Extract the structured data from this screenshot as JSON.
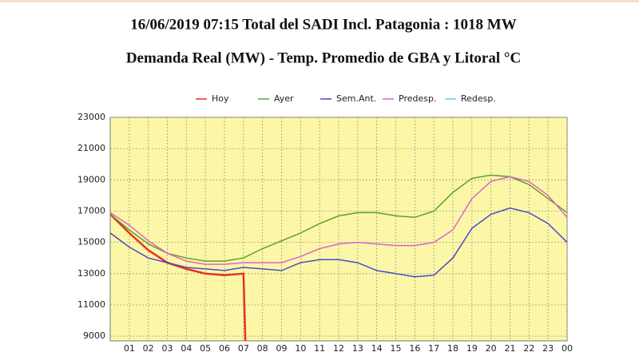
{
  "chart_data": {
    "type": "line",
    "title": "16/06/2019 07:15 Total del SADI Incl. Patagonia : 1018 MW",
    "subtitle": "Demanda Real (MW) - Temp. Promedio de GBA y Litoral °C",
    "x": [
      0,
      1,
      2,
      3,
      4,
      5,
      6,
      7,
      8,
      9,
      10,
      11,
      12,
      13,
      14,
      15,
      16,
      17,
      18,
      19,
      20,
      21,
      22,
      23,
      24
    ],
    "xlim": [
      0,
      24
    ],
    "xticks": [
      {
        "value": 1,
        "label": "01"
      },
      {
        "value": 2,
        "label": "02"
      },
      {
        "value": 3,
        "label": "03"
      },
      {
        "value": 4,
        "label": "04"
      },
      {
        "value": 5,
        "label": "05"
      },
      {
        "value": 6,
        "label": "06"
      },
      {
        "value": 7,
        "label": "07"
      },
      {
        "value": 8,
        "label": "08"
      },
      {
        "value": 9,
        "label": "09"
      },
      10,
      11,
      12,
      13,
      14,
      15,
      16,
      17,
      18,
      19,
      20,
      21,
      22,
      23,
      {
        "value": 24,
        "label": "00"
      }
    ],
    "ylim": [
      8700,
      23000
    ],
    "yticks": [
      9000,
      11000,
      13000,
      15000,
      17000,
      19000,
      21000,
      23000
    ],
    "grid": true,
    "series": [
      {
        "name": "Hoy",
        "color": "#e8312a",
        "x": [
          0,
          1,
          2,
          3,
          4,
          5,
          6,
          7,
          7.1
        ],
        "values": [
          16800,
          15600,
          14500,
          13700,
          13300,
          13000,
          12900,
          13000,
          8700
        ]
      },
      {
        "name": "Ayer",
        "color": "#5aa02c",
        "values": [
          16800,
          15800,
          14900,
          14300,
          14000,
          13800,
          13800,
          14000,
          14600,
          15100,
          15600,
          16200,
          16700,
          16900,
          16900,
          16700,
          16600,
          17000,
          18200,
          19100,
          19300,
          19200,
          18700,
          17800,
          16900
        ]
      },
      {
        "name": "Sem.Ant.",
        "color": "#4a4ac8",
        "values": [
          15600,
          14700,
          14000,
          13700,
          13400,
          13300,
          13200,
          13400,
          13300,
          13200,
          13700,
          13900,
          13900,
          13700,
          13200,
          13000,
          12800,
          12900,
          14000,
          15900,
          16800,
          17200,
          16900,
          16200,
          15000
        ]
      },
      {
        "name": "Predesp.",
        "color": "#e060d0",
        "values": [
          16900,
          16100,
          15100,
          14300,
          13800,
          13600,
          13600,
          13700,
          13700,
          13700,
          14100,
          14600,
          14900,
          15000,
          14900,
          14800,
          14800,
          15000,
          15800,
          17800,
          18900,
          19200,
          18900,
          18000,
          16600
        ]
      },
      {
        "name": "Redesp.",
        "color": "#5bd5e8",
        "values": [
          null,
          null,
          null,
          null,
          null,
          null,
          null,
          null,
          null,
          null,
          null,
          null,
          null,
          null,
          null,
          null,
          null,
          null,
          null,
          null,
          null,
          null,
          null,
          null,
          null
        ]
      }
    ]
  }
}
